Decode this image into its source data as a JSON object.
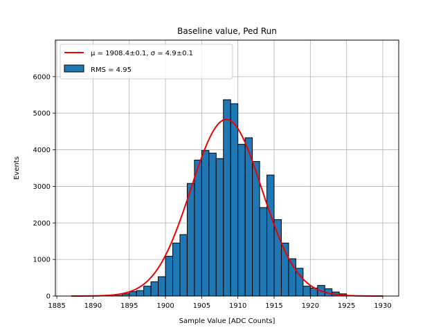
{
  "chart_data": {
    "type": "bar",
    "title": "Baseline value, Ped Run",
    "xlabel": "Sample Value [ADC Counts]",
    "ylabel": "Events",
    "xlim": [
      1884.8,
      1932.2
    ],
    "ylim": [
      0,
      7000
    ],
    "xticks": [
      1885,
      1890,
      1895,
      1900,
      1905,
      1910,
      1915,
      1920,
      1925,
      1930
    ],
    "yticks": [
      0,
      1000,
      2000,
      3000,
      4000,
      5000,
      6000
    ],
    "grid": true,
    "legend_position": "top-left",
    "colors": {
      "bars": "#1f77b4",
      "bar_edge": "#000000",
      "fit": "#ee0000",
      "grid": "#b0b0b0"
    },
    "histogram": {
      "name": "RMS = 4.95",
      "bin_width": 1,
      "bin_edges_start": 1887,
      "bins": [
        {
          "x0": 1893,
          "value": 15
        },
        {
          "x0": 1894,
          "value": 60
        },
        {
          "x0": 1895,
          "value": 120
        },
        {
          "x0": 1896,
          "value": 150
        },
        {
          "x0": 1897,
          "value": 270
        },
        {
          "x0": 1898,
          "value": 390
        },
        {
          "x0": 1899,
          "value": 530
        },
        {
          "x0": 1900,
          "value": 1090
        },
        {
          "x0": 1901,
          "value": 1450
        },
        {
          "x0": 1902,
          "value": 1680
        },
        {
          "x0": 1903,
          "value": 3080
        },
        {
          "x0": 1904,
          "value": 3720
        },
        {
          "x0": 1905,
          "value": 3980
        },
        {
          "x0": 1906,
          "value": 3910
        },
        {
          "x0": 1907,
          "value": 3760
        },
        {
          "x0": 1908,
          "value": 5370
        },
        {
          "x0": 1909,
          "value": 5260
        },
        {
          "x0": 1910,
          "value": 4150
        },
        {
          "x0": 1911,
          "value": 4330
        },
        {
          "x0": 1912,
          "value": 3680
        },
        {
          "x0": 1913,
          "value": 2420
        },
        {
          "x0": 1914,
          "value": 3310
        },
        {
          "x0": 1915,
          "value": 2090
        },
        {
          "x0": 1916,
          "value": 1450
        },
        {
          "x0": 1917,
          "value": 1020
        },
        {
          "x0": 1918,
          "value": 760
        },
        {
          "x0": 1919,
          "value": 270
        },
        {
          "x0": 1920,
          "value": 220
        },
        {
          "x0": 1921,
          "value": 290
        },
        {
          "x0": 1922,
          "value": 200
        },
        {
          "x0": 1923,
          "value": 110
        },
        {
          "x0": 1924,
          "value": 60
        },
        {
          "x0": 1925,
          "value": 20
        }
      ]
    },
    "fit": {
      "name": "$\\mu = 1908.4 \\pm 0.1, \\sigma = 4.9 \\pm 0.1$",
      "display_prefix_mu": "μ",
      "display_mid": " = 1908.4±0.1, ",
      "display_prefix_sigma": "σ",
      "display_suffix": " = 4.9±0.1",
      "type": "gaussian",
      "mu": 1908.4,
      "sigma": 4.9,
      "amplitude": 4830,
      "x_range": [
        1887,
        1930
      ]
    },
    "legend": {
      "fit_label": "μ = 1908.4±0.1, σ = 4.9±0.1",
      "hist_label": "RMS = 4.95"
    }
  }
}
